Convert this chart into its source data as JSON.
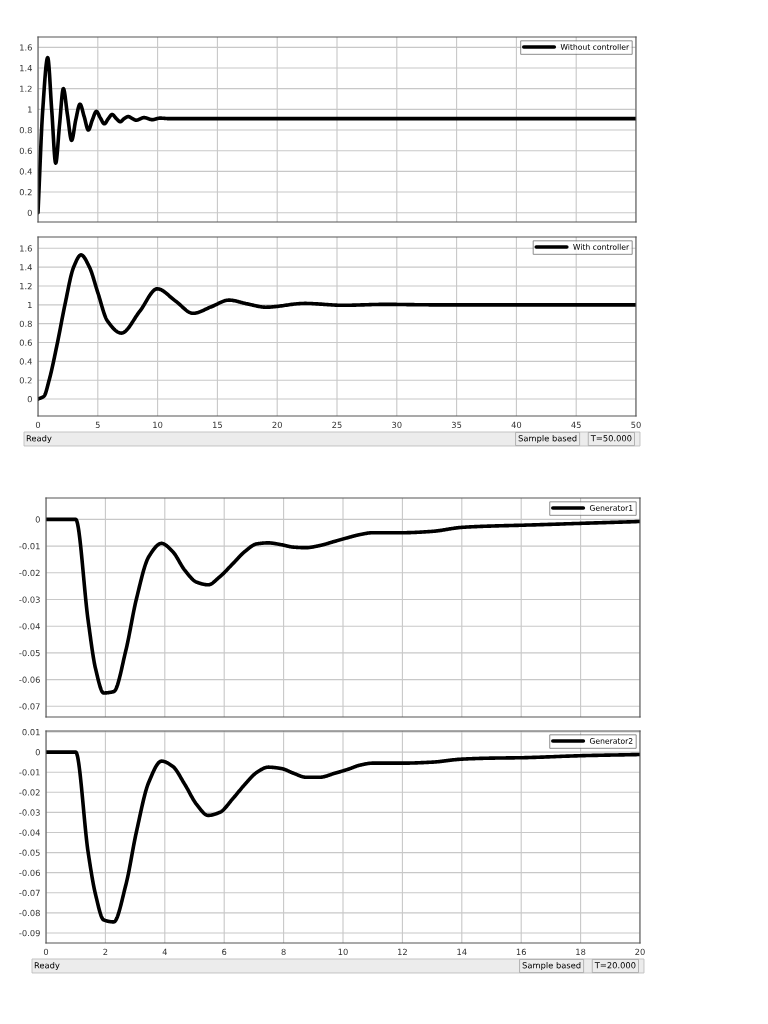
{
  "chart_data": [
    {
      "type": "line",
      "xlim": [
        0,
        50
      ],
      "xticks": [
        0,
        5,
        10,
        15,
        20,
        25,
        30,
        35,
        40,
        45,
        50
      ],
      "ylim": [
        -0.09,
        1.7
      ],
      "yticks": [
        0,
        0.2,
        0.4,
        0.6,
        0.8,
        1,
        1.2,
        1.4,
        1.6
      ],
      "grid": true,
      "legend": "top right",
      "tick_labels": "y",
      "series": [
        {
          "name": "Without controller",
          "color": "#000000",
          "x": [
            0,
            0.4,
            0.81,
            1.15,
            1.48,
            1.8,
            2.12,
            2.46,
            2.81,
            3.16,
            3.51,
            3.86,
            4.21,
            4.55,
            4.88,
            5.2,
            5.55,
            5.88,
            6.2,
            6.55,
            6.88,
            7.2,
            7.55,
            7.9,
            8.2,
            8.87,
            9.55,
            10.2,
            11,
            12,
            50
          ],
          "values": [
            0,
            1.0,
            1.5,
            0.99,
            0.48,
            0.85,
            1.2,
            0.95,
            0.7,
            0.9,
            1.05,
            0.93,
            0.8,
            0.9,
            0.98,
            0.92,
            0.86,
            0.91,
            0.95,
            0.91,
            0.88,
            0.91,
            0.93,
            0.91,
            0.895,
            0.92,
            0.9,
            0.915,
            0.91,
            0.91,
            0.91
          ]
        }
      ]
    },
    {
      "type": "line",
      "xlim": [
        0,
        50
      ],
      "xticks": [
        0,
        5,
        10,
        15,
        20,
        25,
        30,
        35,
        40,
        45,
        50
      ],
      "ylim": [
        -0.18,
        1.72
      ],
      "yticks": [
        0,
        0.2,
        0.4,
        0.6,
        0.8,
        1,
        1.2,
        1.4,
        1.6
      ],
      "grid": true,
      "legend": "top right",
      "annotations": [
        "Ready",
        "Sample based",
        "T=50.000"
      ],
      "series": [
        {
          "name": "With controller",
          "color": "#000000",
          "x": [
            0,
            0.5,
            0.93,
            1.63,
            2.25,
            2.98,
            3.6,
            4.3,
            5.0,
            5.8,
            6.97,
            8.5,
            9.97,
            11.5,
            12.96,
            14.5,
            15.96,
            17.5,
            19.05,
            22.3,
            25.5,
            29,
            33,
            50
          ],
          "values": [
            0,
            0.03,
            0.2,
            0.6,
            1.0,
            1.4,
            1.53,
            1.4,
            1.13,
            0.83,
            0.7,
            0.93,
            1.17,
            1.04,
            0.91,
            0.98,
            1.05,
            1.01,
            0.975,
            1.015,
            0.995,
            1.005,
            1.0,
            1.0
          ]
        }
      ]
    },
    {
      "type": "line",
      "xlim": [
        0,
        20
      ],
      "xticks": [
        0,
        2,
        4,
        6,
        8,
        10,
        12,
        14,
        16,
        18,
        20
      ],
      "ylim": [
        -0.074,
        0.008
      ],
      "yticks": [
        -0.07,
        -0.06,
        -0.05,
        -0.04,
        -0.03,
        -0.02,
        -0.01,
        0
      ],
      "grid": true,
      "legend": "top right",
      "tick_labels": "y",
      "series": [
        {
          "name": "Generator1",
          "color": "#000000",
          "x": [
            0,
            1.0,
            1.42,
            1.67,
            1.94,
            2.28,
            2.69,
            3.04,
            3.46,
            3.89,
            4.26,
            4.67,
            5.07,
            5.46,
            5.85,
            6.3,
            6.7,
            7.09,
            7.48,
            7.93,
            8.33,
            8.75,
            9.22,
            9.73,
            10.18,
            10.57,
            11,
            12,
            13,
            14,
            15,
            16,
            18,
            20
          ],
          "values": [
            0,
            0,
            -0.038,
            -0.056,
            -0.065,
            -0.0645,
            -0.049,
            -0.03,
            -0.014,
            -0.009,
            -0.012,
            -0.019,
            -0.0235,
            -0.0245,
            -0.0215,
            -0.0165,
            -0.012,
            -0.0092,
            -0.0088,
            -0.0095,
            -0.0104,
            -0.0106,
            -0.0098,
            -0.0082,
            -0.0068,
            -0.0057,
            -0.005,
            -0.005,
            -0.0045,
            -0.003,
            -0.0025,
            -0.0022,
            -0.0015,
            -0.0008
          ]
        }
      ]
    },
    {
      "type": "line",
      "xlim": [
        0,
        20
      ],
      "xticks": [
        0,
        2,
        4,
        6,
        8,
        10,
        12,
        14,
        16,
        18,
        20
      ],
      "ylim": [
        -0.095,
        0.0105
      ],
      "yticks": [
        -0.09,
        -0.08,
        -0.07,
        -0.06,
        -0.05,
        -0.04,
        -0.03,
        -0.02,
        -0.01,
        0,
        0.01
      ],
      "grid": true,
      "legend": "top right",
      "annotations": [
        "Ready",
        "Sample based",
        "T=20.000"
      ],
      "series": [
        {
          "name": "Generator2",
          "color": "#000000",
          "x": [
            0,
            1.0,
            1.42,
            1.67,
            1.94,
            2.28,
            2.69,
            3.04,
            3.46,
            3.89,
            4.26,
            4.67,
            5.07,
            5.46,
            5.85,
            6.3,
            6.7,
            7.09,
            7.48,
            7.93,
            8.33,
            8.75,
            9.22,
            9.73,
            10.18,
            10.57,
            11,
            12,
            13,
            14,
            15,
            16,
            18,
            20
          ],
          "values": [
            0,
            0,
            -0.05,
            -0.071,
            -0.0835,
            -0.0845,
            -0.066,
            -0.04,
            -0.015,
            -0.0045,
            -0.007,
            -0.016,
            -0.026,
            -0.0315,
            -0.03,
            -0.023,
            -0.016,
            -0.0102,
            -0.0075,
            -0.0082,
            -0.0105,
            -0.0125,
            -0.0125,
            -0.0105,
            -0.0085,
            -0.0065,
            -0.0055,
            -0.0055,
            -0.005,
            -0.0035,
            -0.003,
            -0.0028,
            -0.0018,
            -0.0012
          ]
        }
      ]
    }
  ]
}
